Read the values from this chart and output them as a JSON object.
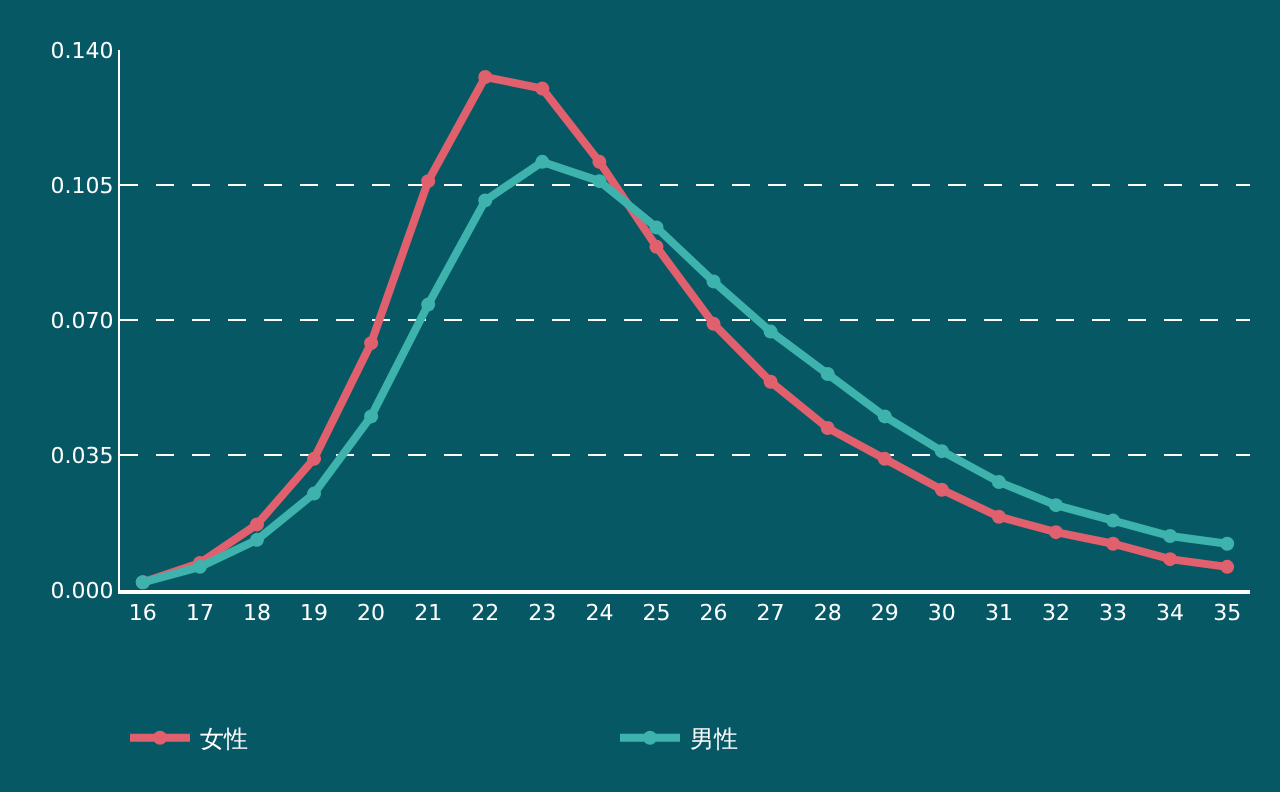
{
  "chart_data": {
    "type": "line",
    "categories": [
      "16",
      "17",
      "18",
      "19",
      "20",
      "21",
      "22",
      "23",
      "24",
      "25",
      "26",
      "27",
      "28",
      "29",
      "30",
      "31",
      "32",
      "33",
      "34",
      "35"
    ],
    "series": [
      {
        "name": "女性",
        "color": "#e0606e",
        "values": [
          0.002,
          0.007,
          0.017,
          0.034,
          0.064,
          0.106,
          0.133,
          0.13,
          0.111,
          0.089,
          0.069,
          0.054,
          0.042,
          0.034,
          0.026,
          0.019,
          0.015,
          0.012,
          0.008,
          0.006
        ]
      },
      {
        "name": "男性",
        "color": "#3eb3ae",
        "values": [
          0.002,
          0.006,
          0.013,
          0.025,
          0.045,
          0.074,
          0.101,
          0.111,
          0.106,
          0.094,
          0.08,
          0.067,
          0.056,
          0.045,
          0.036,
          0.028,
          0.022,
          0.018,
          0.014,
          0.012
        ]
      }
    ],
    "ylim": [
      0,
      0.14
    ],
    "yticks": [
      {
        "value": 0,
        "label": "0.000"
      },
      {
        "value": 0.035,
        "label": "0.035"
      },
      {
        "value": 0.07,
        "label": "0.070"
      },
      {
        "value": 0.105,
        "label": "0.105"
      },
      {
        "value": 0.14,
        "label": "0.140"
      }
    ],
    "grid": "y",
    "legend": "bottom left",
    "marker": "circle",
    "line_style": "solid"
  }
}
